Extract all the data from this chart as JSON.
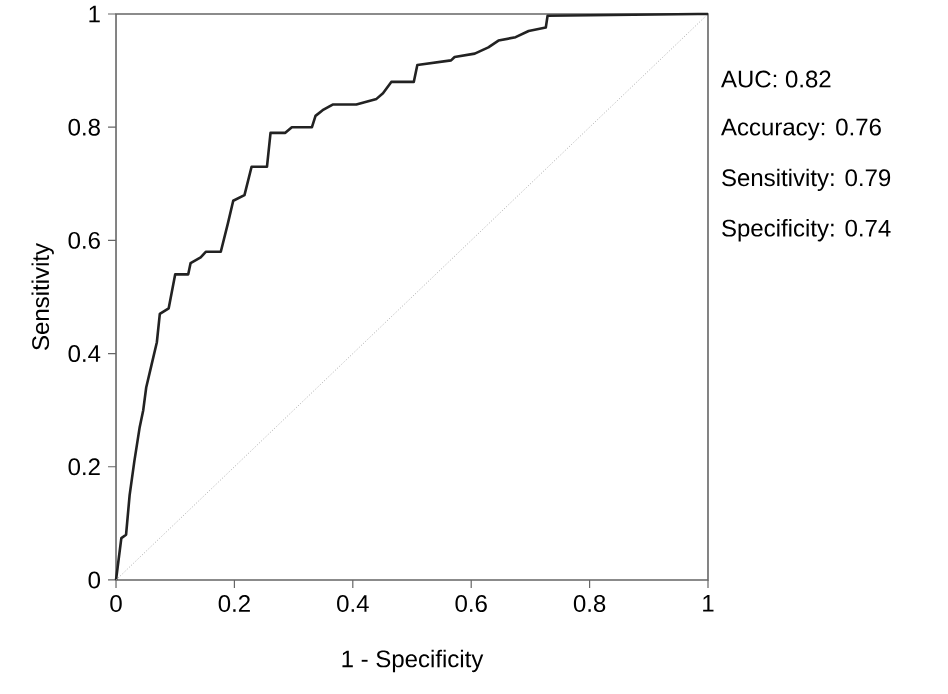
{
  "chart_data": {
    "type": "line",
    "xlabel": "1 - Specificity",
    "ylabel": "Sensitivity",
    "xlim": [
      0,
      1
    ],
    "ylim": [
      0,
      1
    ],
    "xticks": [
      0,
      0.2,
      0.4,
      0.6,
      0.8,
      1
    ],
    "yticks": [
      0,
      0.2,
      0.4,
      0.6,
      0.8,
      1
    ],
    "grid": false,
    "annotations": [
      "AUC: 0.82",
      "Accuracy: 0.76",
      "Sensitivity: 0.79",
      "Specificity: 0.74"
    ],
    "series": [
      {
        "color": "#222222",
        "line_style": "solid",
        "x": [
          0,
          0.009,
          0.017,
          0.023,
          0.031,
          0.04,
          0.046,
          0.051,
          0.06,
          0.069,
          0.074,
          0.089,
          0.1,
          0.122,
          0.126,
          0.143,
          0.152,
          0.177,
          0.189,
          0.198,
          0.217,
          0.229,
          0.255,
          0.261,
          0.286,
          0.297,
          0.331,
          0.337,
          0.349,
          0.366,
          0.406,
          0.44,
          0.451,
          0.465,
          0.503,
          0.509,
          0.566,
          0.572,
          0.606,
          0.629,
          0.646,
          0.675,
          0.697,
          0.726,
          0.729,
          0.983,
          1
        ],
        "values": [
          0,
          0.074,
          0.08,
          0.15,
          0.21,
          0.27,
          0.3,
          0.34,
          0.38,
          0.42,
          0.47,
          0.48,
          0.54,
          0.54,
          0.56,
          0.57,
          0.58,
          0.58,
          0.63,
          0.67,
          0.68,
          0.73,
          0.73,
          0.79,
          0.79,
          0.8,
          0.8,
          0.82,
          0.83,
          0.84,
          0.84,
          0.85,
          0.86,
          0.88,
          0.88,
          0.91,
          0.918,
          0.924,
          0.93,
          0.941,
          0.953,
          0.959,
          0.97,
          0.976,
          0.997,
          1,
          1
        ]
      },
      {
        "color": "#aaaaaa",
        "line_style": "dotted",
        "x": [
          0,
          1
        ],
        "values": [
          0,
          1
        ]
      }
    ]
  }
}
